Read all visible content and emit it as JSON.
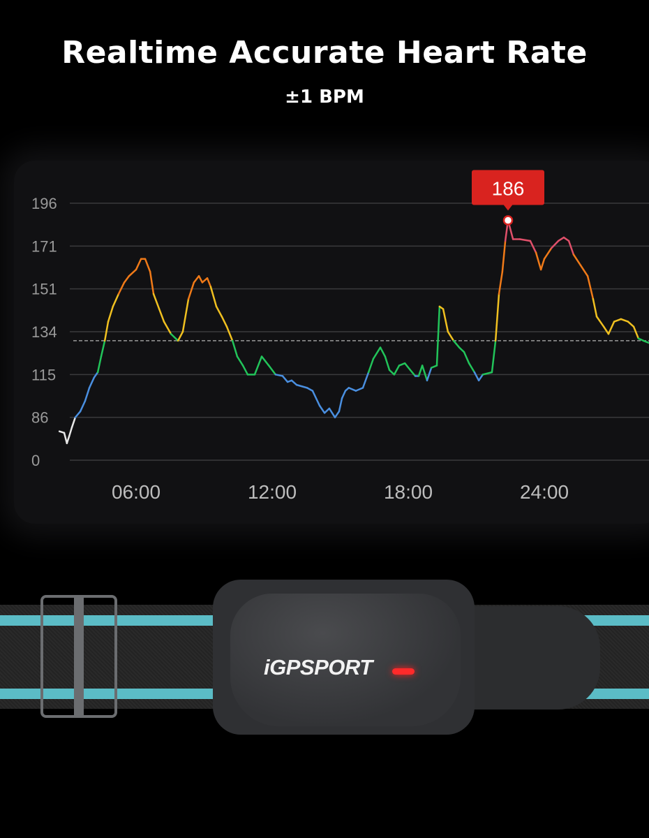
{
  "header": {
    "title": "Realtime Accurate Heart Rate",
    "subtitle": "±1 BPM"
  },
  "product": {
    "logo_text": "iGPSPORT",
    "strap_stripe_color": "#5bbcc6",
    "led_color": "#ff2a2a"
  },
  "chart_data": {
    "type": "line",
    "title": "",
    "xlabel": "",
    "ylabel": "",
    "grid": true,
    "x_unit": "hours",
    "x_ticks": [
      {
        "value": 6,
        "label": "06:00"
      },
      {
        "value": 12,
        "label": "12:00"
      },
      {
        "value": 18,
        "label": "18:00"
      },
      {
        "value": 24,
        "label": "24:00"
      }
    ],
    "y_ticks": [
      "0",
      "86",
      "115",
      "134",
      "151",
      "171",
      "196"
    ],
    "y_tick_values": [
      0,
      86,
      115,
      134,
      151,
      171,
      196
    ],
    "reference_line": 130,
    "peak_annotation": {
      "x": 22.4,
      "value": 186,
      "label": "186",
      "color": "#d9231f"
    },
    "zone_colors": [
      {
        "below": 80,
        "color": "#e8e8e8"
      },
      {
        "below": 115,
        "color": "#4a8fe0"
      },
      {
        "below": 132,
        "color": "#22c45a"
      },
      {
        "below": 150,
        "color": "#f0c020"
      },
      {
        "below": 170,
        "color": "#f07a18"
      },
      {
        "below": 999,
        "color": "#e0506a"
      }
    ],
    "series": [
      {
        "points": [
          [
            2.62,
            58
          ],
          [
            2.83,
            55
          ],
          [
            2.95,
            34
          ],
          [
            3.05,
            48
          ],
          [
            3.17,
            66
          ],
          [
            3.32,
            86
          ],
          [
            3.54,
            90
          ],
          [
            3.75,
            97
          ],
          [
            3.94,
            106
          ],
          [
            4.15,
            113
          ],
          [
            4.31,
            116
          ],
          [
            4.46,
            123
          ],
          [
            4.62,
            130
          ],
          [
            4.77,
            138
          ],
          [
            4.98,
            144
          ],
          [
            5.23,
            149
          ],
          [
            5.48,
            154
          ],
          [
            5.69,
            157
          ],
          [
            6.0,
            160
          ],
          [
            6.22,
            165
          ],
          [
            6.4,
            165
          ],
          [
            6.62,
            159
          ],
          [
            6.77,
            149
          ],
          [
            7.02,
            143
          ],
          [
            7.23,
            138
          ],
          [
            7.54,
            133
          ],
          [
            7.85,
            130
          ],
          [
            8.06,
            134
          ],
          [
            8.31,
            147
          ],
          [
            8.55,
            154
          ],
          [
            8.77,
            157
          ],
          [
            8.92,
            154
          ],
          [
            9.14,
            156
          ],
          [
            9.29,
            152
          ],
          [
            9.54,
            144
          ],
          [
            9.78,
            140
          ],
          [
            10.0,
            136
          ],
          [
            10.25,
            130
          ],
          [
            10.46,
            123
          ],
          [
            10.71,
            119
          ],
          [
            10.92,
            115
          ],
          [
            11.23,
            115
          ],
          [
            11.54,
            123
          ],
          [
            11.85,
            119
          ],
          [
            12.15,
            115
          ],
          [
            12.46,
            114
          ],
          [
            12.68,
            110
          ],
          [
            12.86,
            111
          ],
          [
            13.08,
            108
          ],
          [
            13.54,
            106
          ],
          [
            13.78,
            104
          ],
          [
            14.09,
            94
          ],
          [
            14.31,
            89
          ],
          [
            14.52,
            92
          ],
          [
            14.77,
            86
          ],
          [
            14.95,
            90
          ],
          [
            15.08,
            99
          ],
          [
            15.23,
            104
          ],
          [
            15.38,
            106
          ],
          [
            15.69,
            104
          ],
          [
            16.0,
            106
          ],
          [
            16.25,
            116
          ],
          [
            16.46,
            122
          ],
          [
            16.77,
            127
          ],
          [
            16.98,
            123
          ],
          [
            17.17,
            117
          ],
          [
            17.38,
            115
          ],
          [
            17.6,
            119
          ],
          [
            17.85,
            120
          ],
          [
            18.09,
            117
          ],
          [
            18.31,
            114
          ],
          [
            18.46,
            114
          ],
          [
            18.62,
            119
          ],
          [
            18.83,
            111
          ],
          [
            19.02,
            118
          ],
          [
            19.26,
            119
          ],
          [
            19.38,
            144
          ],
          [
            19.54,
            143
          ],
          [
            19.75,
            134
          ],
          [
            20.0,
            130
          ],
          [
            20.25,
            127
          ],
          [
            20.46,
            125
          ],
          [
            20.68,
            120
          ],
          [
            20.92,
            116
          ],
          [
            21.11,
            111
          ],
          [
            21.29,
            115
          ],
          [
            21.69,
            116
          ],
          [
            21.85,
            130
          ],
          [
            22.0,
            149
          ],
          [
            22.15,
            159
          ],
          [
            22.28,
            174
          ],
          [
            22.4,
            186
          ],
          [
            22.62,
            175
          ],
          [
            22.92,
            175
          ],
          [
            23.38,
            174
          ],
          [
            23.63,
            168
          ],
          [
            23.85,
            160
          ],
          [
            24.0,
            165
          ],
          [
            24.31,
            170
          ],
          [
            24.62,
            174
          ],
          [
            24.86,
            176
          ],
          [
            25.08,
            174
          ],
          [
            25.29,
            167
          ],
          [
            25.6,
            162
          ],
          [
            25.91,
            157
          ],
          [
            26.15,
            147
          ],
          [
            26.31,
            140
          ],
          [
            26.62,
            136
          ],
          [
            26.83,
            133
          ],
          [
            27.08,
            138
          ],
          [
            27.38,
            139
          ],
          [
            27.69,
            138
          ],
          [
            27.94,
            136
          ],
          [
            28.15,
            131
          ],
          [
            28.37,
            130
          ],
          [
            28.62,
            129
          ]
        ]
      }
    ]
  }
}
